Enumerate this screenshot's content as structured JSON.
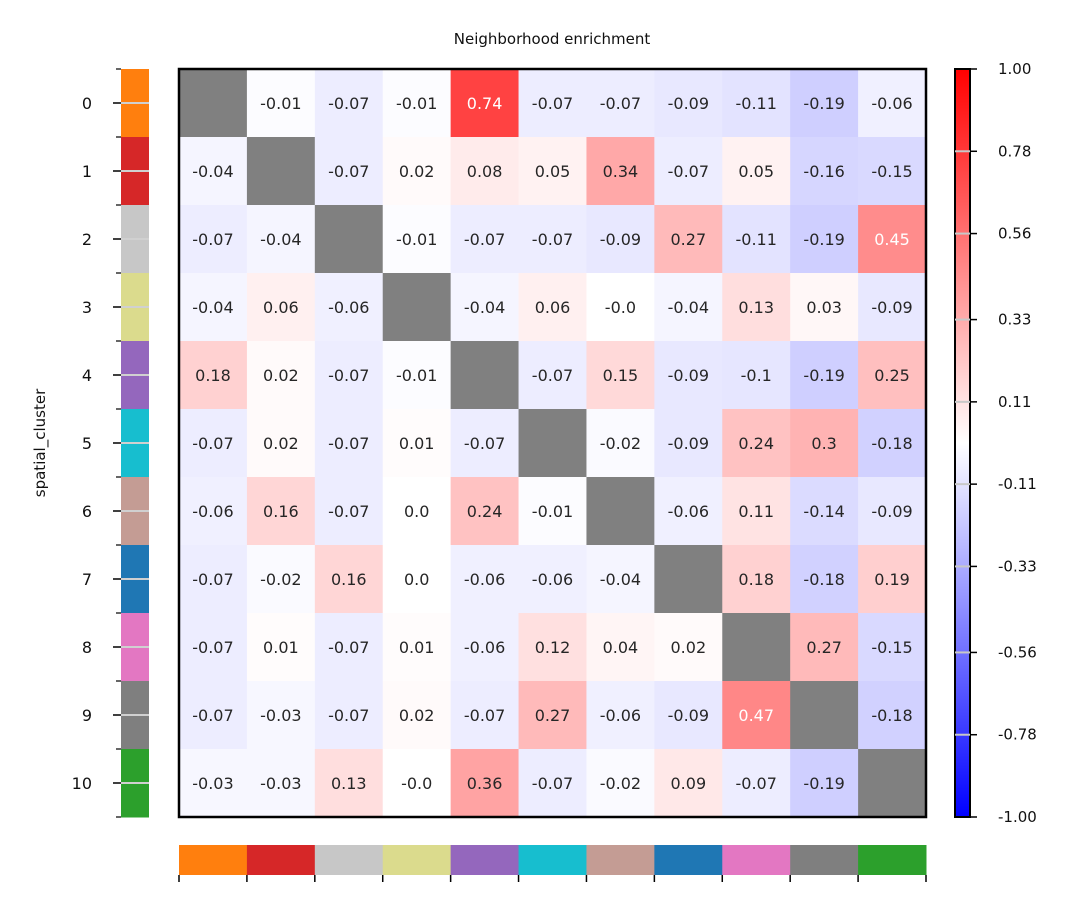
{
  "chart_data": {
    "type": "heatmap",
    "title": "Neighborhood enrichment",
    "ylabel": "spatial_cluster",
    "xlabel": "",
    "categories": [
      "0",
      "1",
      "2",
      "3",
      "4",
      "5",
      "6",
      "7",
      "8",
      "9",
      "10"
    ],
    "category_colors": [
      "#ff7f0e",
      "#d62728",
      "#c7c7c7",
      "#dbdb8d",
      "#9467bd",
      "#17becf",
      "#c49c94",
      "#1f77b4",
      "#e377c2",
      "#7f7f7f",
      "#2ca02c"
    ],
    "diagonal_color": "#808080",
    "colormap": "bwr",
    "vlim": [
      -1.0,
      1.0
    ],
    "colorbar_ticks": [
      "1.00",
      "0.78",
      "0.56",
      "0.33",
      "0.11",
      "-0.11",
      "-0.33",
      "-0.56",
      "-0.78",
      "-1.00"
    ],
    "values": [
      [
        null,
        "-0.01",
        "-0.07",
        "-0.01",
        "0.74",
        "-0.07",
        "-0.07",
        "-0.09",
        "-0.11",
        "-0.19",
        "-0.06"
      ],
      [
        "-0.04",
        null,
        "-0.07",
        "0.02",
        "0.08",
        "0.05",
        "0.34",
        "-0.07",
        "0.05",
        "-0.16",
        "-0.15"
      ],
      [
        "-0.07",
        "-0.04",
        null,
        "-0.01",
        "-0.07",
        "-0.07",
        "-0.09",
        "0.27",
        "-0.11",
        "-0.19",
        "0.45"
      ],
      [
        "-0.04",
        "0.06",
        "-0.06",
        null,
        "-0.04",
        "0.06",
        "-0.0",
        "-0.04",
        "0.13",
        "0.03",
        "-0.09"
      ],
      [
        "0.18",
        "0.02",
        "-0.07",
        "-0.01",
        null,
        "-0.07",
        "0.15",
        "-0.09",
        "-0.1",
        "-0.19",
        "0.25"
      ],
      [
        "-0.07",
        "0.02",
        "-0.07",
        "0.01",
        "-0.07",
        null,
        "-0.02",
        "-0.09",
        "0.24",
        "0.3",
        "-0.18"
      ],
      [
        "-0.06",
        "0.16",
        "-0.07",
        "0.0",
        "0.24",
        "-0.01",
        null,
        "-0.06",
        "0.11",
        "-0.14",
        "-0.09"
      ],
      [
        "-0.07",
        "-0.02",
        "0.16",
        "0.0",
        "-0.06",
        "-0.06",
        "-0.04",
        null,
        "0.18",
        "-0.18",
        "0.19"
      ],
      [
        "-0.07",
        "0.01",
        "-0.07",
        "0.01",
        "-0.06",
        "0.12",
        "0.04",
        "0.02",
        null,
        "0.27",
        "-0.15"
      ],
      [
        "-0.07",
        "-0.03",
        "-0.07",
        "0.02",
        "-0.07",
        "0.27",
        "-0.06",
        "-0.09",
        "0.47",
        null,
        "-0.18"
      ],
      [
        "-0.03",
        "-0.03",
        "0.13",
        "-0.0",
        "0.36",
        "-0.07",
        "-0.02",
        "0.09",
        "-0.07",
        "-0.19",
        null
      ]
    ]
  }
}
